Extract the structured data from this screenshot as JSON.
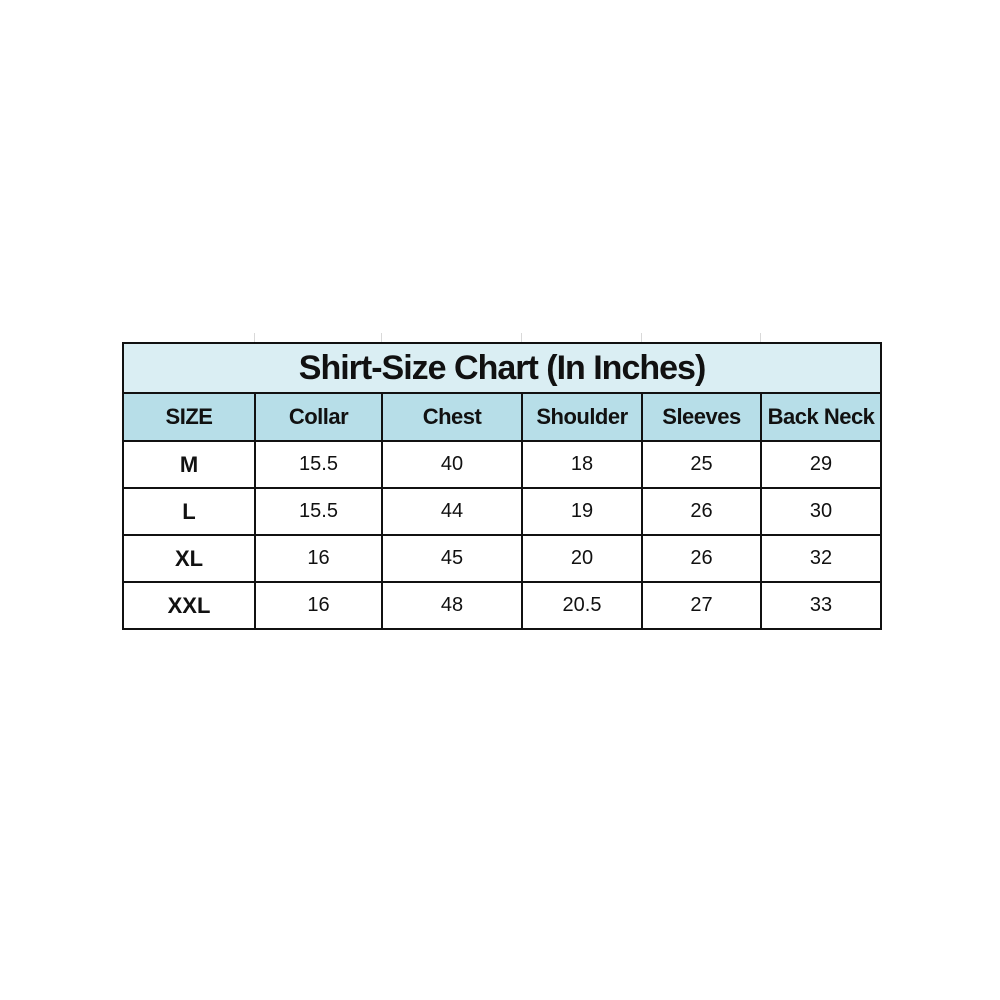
{
  "title": "Shirt-Size Chart (In Inches)",
  "headers": [
    "SIZE",
    "Collar",
    "Chest",
    "Shoulder",
    "Sleeves",
    "Back Neck"
  ],
  "rows": [
    [
      "M",
      "15.5",
      "40",
      "18",
      "25",
      "29"
    ],
    [
      "L",
      "15.5",
      "44",
      "19",
      "26",
      "30"
    ],
    [
      "XL",
      "16",
      "45",
      "20",
      "26",
      "32"
    ],
    [
      "XXL",
      "16",
      "48",
      "20.5",
      "27",
      "33"
    ]
  ],
  "colors": {
    "title_bg": "#daeef3",
    "header_bg": "#b7dee8",
    "border": "#111111"
  }
}
